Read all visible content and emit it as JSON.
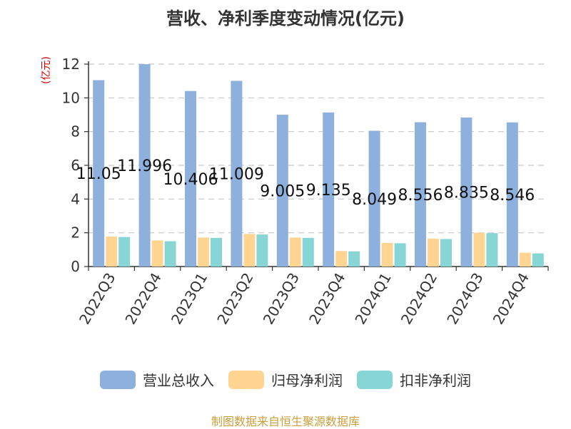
{
  "title": "营收、净利季度变动情况(亿元)",
  "unit_label": "(亿元)",
  "source": "制图数据来自恒生聚源数据库",
  "legend": [
    {
      "label": "营业总收入",
      "color": "#8eb0dd"
    },
    {
      "label": "归母净利润",
      "color": "#ffd591"
    },
    {
      "label": "扣非净利润",
      "color": "#88d5d6"
    }
  ],
  "chart_data": {
    "type": "bar",
    "categories": [
      "2022Q3",
      "2022Q4",
      "2023Q1",
      "2023Q2",
      "2023Q3",
      "2023Q4",
      "2024Q1",
      "2024Q2",
      "2024Q3",
      "2024Q4"
    ],
    "series": [
      {
        "name": "营业总收入",
        "values": [
          11.05,
          11.996,
          10.406,
          11.009,
          9.005,
          9.135,
          8.049,
          8.556,
          8.835,
          8.546
        ],
        "labels": [
          "11.05",
          "11.996",
          "10.406",
          "11.009",
          "9.005",
          "9.135",
          "8.049",
          "8.556",
          "8.835",
          "8.546"
        ],
        "color": "#8eb0dd"
      },
      {
        "name": "归母净利润",
        "values": [
          1.78,
          1.55,
          1.72,
          1.93,
          1.72,
          0.92,
          1.4,
          1.65,
          2.0,
          0.82
        ],
        "color": "#ffd591"
      },
      {
        "name": "扣非净利润",
        "values": [
          1.75,
          1.5,
          1.7,
          1.9,
          1.7,
          0.9,
          1.38,
          1.63,
          1.98,
          0.78
        ],
        "color": "#88d5d6"
      }
    ],
    "yticks": [
      0,
      2,
      4,
      6,
      8,
      10,
      12
    ],
    "ylim": [
      0,
      12
    ],
    "grid": true,
    "legend_position": "bottom"
  }
}
